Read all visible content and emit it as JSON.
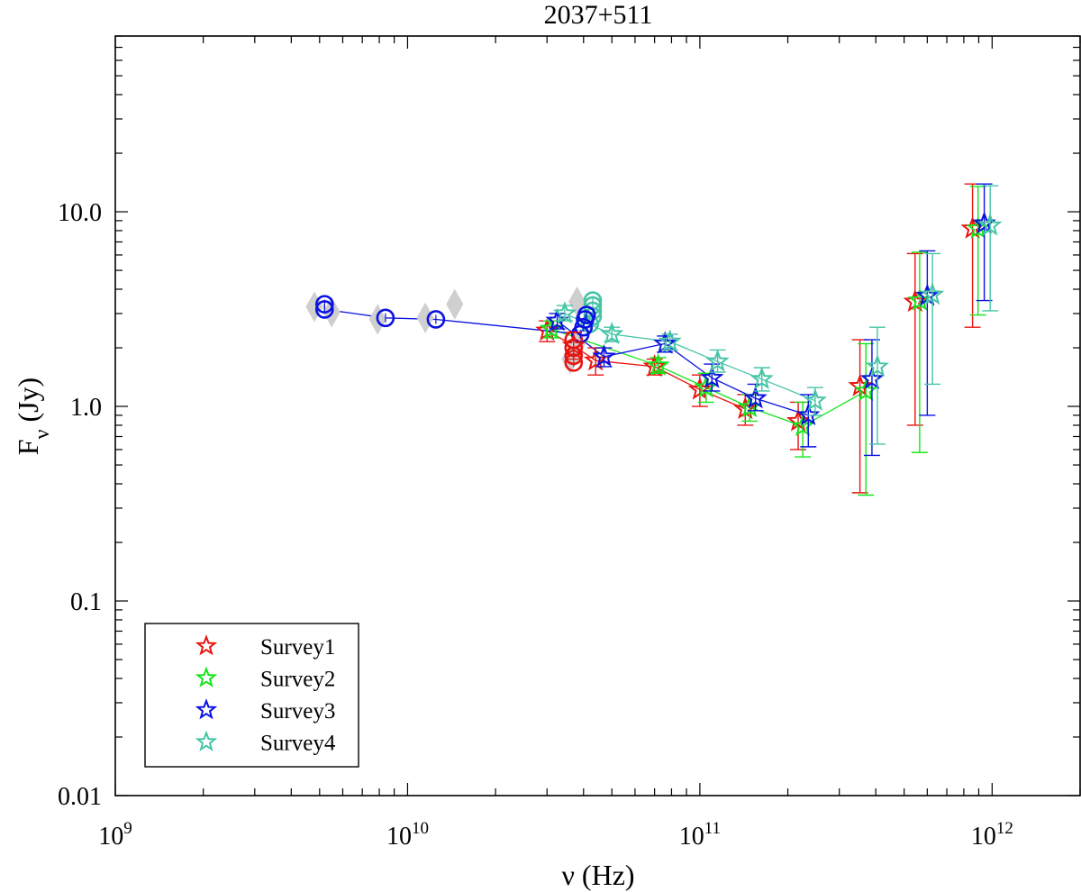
{
  "chart_data": {
    "type": "scatter",
    "title": "2037+511",
    "xlabel": "ν (Hz)",
    "ylabel_main": "F",
    "ylabel_sub": "ν",
    "ylabel_tail": " (Jy)",
    "xscale": "log",
    "yscale": "log",
    "xlim": [
      1000000000.0,
      2000000000000.0
    ],
    "ylim": [
      0.01,
      80
    ],
    "x_ticks": [
      {
        "value": 1000000000.0,
        "base": "10",
        "exp": "9"
      },
      {
        "value": 10000000000.0,
        "base": "10",
        "exp": "10"
      },
      {
        "value": 100000000000.0,
        "base": "10",
        "exp": "11"
      },
      {
        "value": 1000000000000.0,
        "base": "10",
        "exp": "12"
      }
    ],
    "y_ticks": [
      {
        "value": 0.01,
        "label": "0.01"
      },
      {
        "value": 0.1,
        "label": "0.1"
      },
      {
        "value": 1,
        "label": "1.0"
      },
      {
        "value": 10,
        "label": "10.0"
      }
    ],
    "legend_position": "bottom-left",
    "series": [
      {
        "name": "Survey1",
        "color": "#e8140f",
        "marker": "star",
        "points": [
          {
            "x": 30000000000.0,
            "y": 2.45,
            "lo": 2.15,
            "hi": 2.75
          },
          {
            "x": 37000000000.0,
            "y": 2.05,
            "lo": 1.75,
            "hi": 2.4
          },
          {
            "x": 44000000000.0,
            "y": 1.72,
            "lo": 1.45,
            "hi": 2.0
          },
          {
            "x": 70000000000.0,
            "y": 1.6,
            "lo": 1.45,
            "hi": 1.75
          },
          {
            "x": 100000000000.0,
            "y": 1.22,
            "lo": 1.0,
            "hi": 1.45
          },
          {
            "x": 143000000000.0,
            "y": 0.97,
            "lo": 0.8,
            "hi": 1.15
          },
          {
            "x": 217000000000.0,
            "y": 0.84,
            "lo": 0.6,
            "hi": 1.05
          },
          {
            "x": 353000000000.0,
            "y": 1.27,
            "lo": 0.36,
            "hi": 2.2
          },
          {
            "x": 545000000000.0,
            "y": 3.45,
            "lo": 0.8,
            "hi": 6.1
          },
          {
            "x": 857000000000.0,
            "y": 8.2,
            "lo": 2.55,
            "hi": 13.9
          }
        ]
      },
      {
        "name": "Survey2",
        "color": "#15e51c",
        "marker": "star",
        "points": [
          {
            "x": 31000000000.0,
            "y": 2.5,
            "lo": 2.25,
            "hi": 2.75
          },
          {
            "x": 72000000000.0,
            "y": 1.62,
            "lo": 1.48,
            "hi": 1.78
          },
          {
            "x": 105000000000.0,
            "y": 1.25,
            "lo": 1.05,
            "hi": 1.48
          },
          {
            "x": 148000000000.0,
            "y": 0.99,
            "lo": 0.84,
            "hi": 1.15
          },
          {
            "x": 225000000000.0,
            "y": 0.79,
            "lo": 0.55,
            "hi": 1.05
          },
          {
            "x": 370000000000.0,
            "y": 1.2,
            "lo": 0.35,
            "hi": 2.1
          },
          {
            "x": 565000000000.0,
            "y": 3.5,
            "lo": 0.58,
            "hi": 6.2
          },
          {
            "x": 895000000000.0,
            "y": 8.2,
            "lo": 2.95,
            "hi": 13.5
          }
        ]
      },
      {
        "name": "Survey3",
        "color": "#0a12e0",
        "marker": "star",
        "points": [
          {
            "x": 32500000000.0,
            "y": 2.75,
            "lo": 2.5,
            "hi": 3.0
          },
          {
            "x": 47000000000.0,
            "y": 1.8,
            "lo": 1.6,
            "hi": 2.0
          },
          {
            "x": 76000000000.0,
            "y": 2.1,
            "lo": 1.9,
            "hi": 2.3
          },
          {
            "x": 110000000000.0,
            "y": 1.4,
            "lo": 1.2,
            "hi": 1.65
          },
          {
            "x": 155000000000.0,
            "y": 1.1,
            "lo": 0.95,
            "hi": 1.3
          },
          {
            "x": 235000000000.0,
            "y": 0.9,
            "lo": 0.62,
            "hi": 1.15
          },
          {
            "x": 388000000000.0,
            "y": 1.38,
            "lo": 0.56,
            "hi": 2.2
          },
          {
            "x": 600000000000.0,
            "y": 3.7,
            "lo": 0.9,
            "hi": 6.3
          },
          {
            "x": 940000000000.0,
            "y": 8.7,
            "lo": 3.5,
            "hi": 13.9
          }
        ]
      },
      {
        "name": "Survey4",
        "color": "#45c4a6",
        "marker": "star",
        "points": [
          {
            "x": 34500000000.0,
            "y": 3.0,
            "lo": 2.75,
            "hi": 3.3
          },
          {
            "x": 50000000000.0,
            "y": 2.35,
            "lo": 2.15,
            "hi": 2.55
          },
          {
            "x": 79000000000.0,
            "y": 2.15,
            "lo": 1.95,
            "hi": 2.35
          },
          {
            "x": 115000000000.0,
            "y": 1.7,
            "lo": 1.5,
            "hi": 1.95
          },
          {
            "x": 163000000000.0,
            "y": 1.38,
            "lo": 1.2,
            "hi": 1.58
          },
          {
            "x": 248000000000.0,
            "y": 1.07,
            "lo": 0.9,
            "hi": 1.25
          },
          {
            "x": 405000000000.0,
            "y": 1.6,
            "lo": 0.64,
            "hi": 2.55
          },
          {
            "x": 625000000000.0,
            "y": 3.75,
            "lo": 1.3,
            "hi": 6.1
          },
          {
            "x": 985000000000.0,
            "y": 8.5,
            "lo": 3.1,
            "hi": 13.6
          }
        ]
      }
    ],
    "extra_markers": [
      {
        "group": "blue-circles",
        "color": "#0a12e0",
        "marker": "circle",
        "connected": true,
        "points": [
          {
            "x": 5200000000.0,
            "y": 3.35
          },
          {
            "x": 5200000000.0,
            "y": 3.15
          },
          {
            "x": 8400000000.0,
            "y": 2.85
          },
          {
            "x": 12500000000.0,
            "y": 2.8
          },
          {
            "x": 39000000000.0,
            "y": 2.35
          },
          {
            "x": 40000000000.0,
            "y": 2.55
          },
          {
            "x": 40500000000.0,
            "y": 2.8
          },
          {
            "x": 41000000000.0,
            "y": 2.95
          }
        ]
      },
      {
        "group": "red-circles",
        "color": "#e8140f",
        "marker": "circle",
        "connected": false,
        "points": [
          {
            "x": 37000000000.0,
            "y": 2.2
          },
          {
            "x": 37000000000.0,
            "y": 2.0
          },
          {
            "x": 37000000000.0,
            "y": 1.82
          },
          {
            "x": 37000000000.0,
            "y": 1.68
          }
        ]
      },
      {
        "group": "teal-circles",
        "color": "#45c4a6",
        "marker": "circle",
        "connected": false,
        "points": [
          {
            "x": 43000000000.0,
            "y": 3.5
          },
          {
            "x": 43000000000.0,
            "y": 3.3
          },
          {
            "x": 43000000000.0,
            "y": 3.1
          },
          {
            "x": 43000000000.0,
            "y": 2.9
          },
          {
            "x": 42000000000.0,
            "y": 2.65
          }
        ]
      },
      {
        "group": "gray-diamonds",
        "color": "#cfcfcf",
        "marker": "diamond",
        "connected": false,
        "points": [
          {
            "x": 4800000000.0,
            "y": 3.25
          },
          {
            "x": 5500000000.0,
            "y": 3.05
          },
          {
            "x": 7900000000.0,
            "y": 2.8
          },
          {
            "x": 11500000000.0,
            "y": 2.85
          },
          {
            "x": 14500000000.0,
            "y": 3.35
          },
          {
            "x": 38000000000.0,
            "y": 3.45
          },
          {
            "x": 38000000000.0,
            "y": 2.1
          },
          {
            "x": 36000000000.0,
            "y": 1.75
          }
        ]
      }
    ]
  }
}
